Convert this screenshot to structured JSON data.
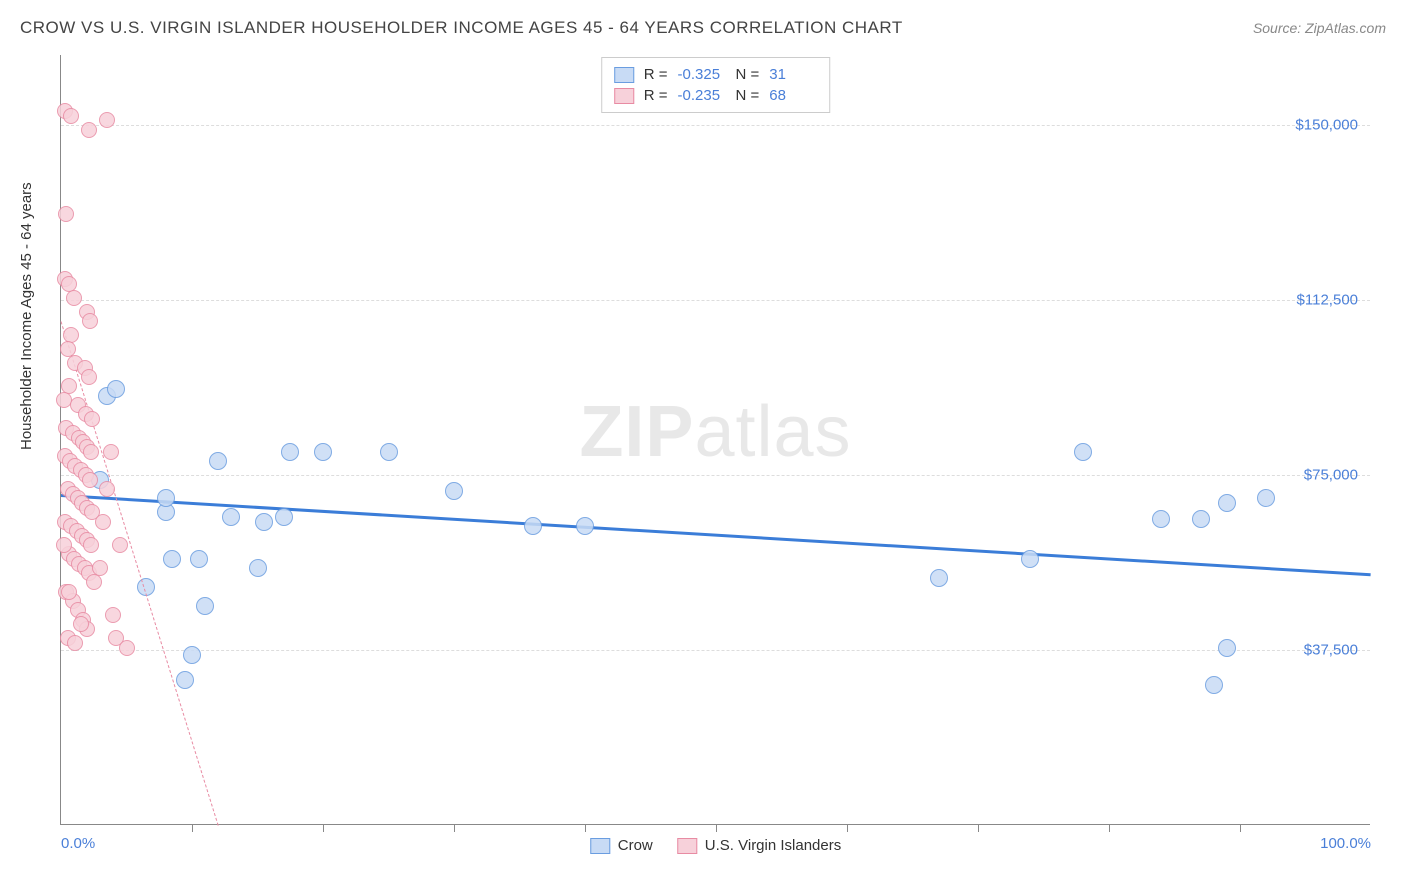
{
  "title": "CROW VS U.S. VIRGIN ISLANDER HOUSEHOLDER INCOME AGES 45 - 64 YEARS CORRELATION CHART",
  "source": "Source: ZipAtlas.com",
  "ylabel": "Householder Income Ages 45 - 64 years",
  "watermark_bold": "ZIP",
  "watermark_rest": "atlas",
  "chart": {
    "type": "scatter",
    "xlim": [
      0,
      100
    ],
    "ylim": [
      0,
      165000
    ],
    "x_tick_labels": [
      {
        "pos": 0,
        "label": "0.0%"
      },
      {
        "pos": 100,
        "label": "100.0%"
      }
    ],
    "x_minor_ticks": [
      10,
      20,
      30,
      40,
      50,
      60,
      70,
      80,
      90
    ],
    "y_gridlines": [
      {
        "val": 37500,
        "label": "$37,500"
      },
      {
        "val": 75000,
        "label": "$75,000"
      },
      {
        "val": 112500,
        "label": "$112,500"
      },
      {
        "val": 150000,
        "label": "$150,000"
      }
    ],
    "background_color": "#ffffff",
    "grid_color": "#dddddd",
    "axis_color": "#888888",
    "series": [
      {
        "name": "Crow",
        "fill": "#c8dbf5",
        "stroke": "#6a9de0",
        "marker_radius": 9,
        "stroke_width": 1.5,
        "trend": {
          "x1": 0,
          "y1": 71000,
          "x2": 100,
          "y2": 54000,
          "color": "#3b7dd8",
          "width": 3,
          "dash": false
        },
        "stats": {
          "R": "-0.325",
          "N": "31"
        },
        "points": [
          [
            8.0,
            67000
          ],
          [
            9.5,
            31000
          ],
          [
            10,
            36500
          ],
          [
            6.5,
            51000
          ],
          [
            11,
            47000
          ],
          [
            8.5,
            57000
          ],
          [
            10.5,
            57000
          ],
          [
            8,
            70000
          ],
          [
            13,
            66000
          ],
          [
            15,
            55000
          ],
          [
            15.5,
            65000
          ],
          [
            17,
            66000
          ],
          [
            12,
            78000
          ],
          [
            17.5,
            80000
          ],
          [
            20,
            80000
          ],
          [
            25,
            80000
          ],
          [
            30,
            71500
          ],
          [
            36,
            64000
          ],
          [
            40,
            64000
          ],
          [
            67,
            53000
          ],
          [
            74,
            57000
          ],
          [
            78,
            80000
          ],
          [
            84,
            65500
          ],
          [
            87,
            65500
          ],
          [
            88,
            30000
          ],
          [
            89,
            38000
          ],
          [
            89,
            69000
          ],
          [
            92,
            70000
          ],
          [
            3.5,
            92000
          ],
          [
            4.2,
            93500
          ],
          [
            3,
            74000
          ]
        ]
      },
      {
        "name": "U.S. Virgin Islanders",
        "fill": "#f7d1da",
        "stroke": "#e88ba3",
        "marker_radius": 8,
        "stroke_width": 1.5,
        "trend": {
          "x1": 0,
          "y1": 108000,
          "x2": 12,
          "y2": 0,
          "color": "#e88ba3",
          "width": 1.2,
          "dash": true
        },
        "stats": {
          "R": "-0.235",
          "N": "68"
        },
        "points": [
          [
            0.3,
            153000
          ],
          [
            0.8,
            152000
          ],
          [
            2.1,
            149000
          ],
          [
            3.5,
            151000
          ],
          [
            0.4,
            131000
          ],
          [
            0.3,
            117000
          ],
          [
            0.6,
            116000
          ],
          [
            1.0,
            113000
          ],
          [
            2.0,
            110000
          ],
          [
            2.2,
            108000
          ],
          [
            0.8,
            105000
          ],
          [
            0.5,
            102000
          ],
          [
            1.1,
            99000
          ],
          [
            1.8,
            98000
          ],
          [
            2.1,
            96000
          ],
          [
            0.6,
            94000
          ],
          [
            0.2,
            91000
          ],
          [
            1.3,
            90000
          ],
          [
            1.9,
            88000
          ],
          [
            2.4,
            87000
          ],
          [
            0.4,
            85000
          ],
          [
            0.9,
            84000
          ],
          [
            1.4,
            83000
          ],
          [
            1.7,
            82000
          ],
          [
            2.0,
            81000
          ],
          [
            2.3,
            80000
          ],
          [
            0.3,
            79000
          ],
          [
            0.7,
            78000
          ],
          [
            1.1,
            77000
          ],
          [
            1.5,
            76000
          ],
          [
            1.9,
            75000
          ],
          [
            2.2,
            74000
          ],
          [
            0.5,
            72000
          ],
          [
            0.9,
            71000
          ],
          [
            1.3,
            70000
          ],
          [
            1.6,
            69000
          ],
          [
            2.0,
            68000
          ],
          [
            2.4,
            67000
          ],
          [
            0.3,
            65000
          ],
          [
            0.8,
            64000
          ],
          [
            1.2,
            63000
          ],
          [
            1.6,
            62000
          ],
          [
            2.0,
            61000
          ],
          [
            2.3,
            60000
          ],
          [
            0.6,
            58000
          ],
          [
            1.0,
            57000
          ],
          [
            1.4,
            56000
          ],
          [
            1.8,
            55000
          ],
          [
            2.1,
            54000
          ],
          [
            2.5,
            52000
          ],
          [
            0.4,
            50000
          ],
          [
            0.9,
            48000
          ],
          [
            1.3,
            46000
          ],
          [
            1.7,
            44000
          ],
          [
            2.0,
            42000
          ],
          [
            0.5,
            40000
          ],
          [
            1.1,
            39000
          ],
          [
            1.5,
            43000
          ],
          [
            3.0,
            55000
          ],
          [
            3.2,
            65000
          ],
          [
            3.5,
            72000
          ],
          [
            4.0,
            45000
          ],
          [
            4.2,
            40000
          ],
          [
            5.0,
            38000
          ],
          [
            3.8,
            80000
          ],
          [
            0.2,
            60000
          ],
          [
            0.6,
            50000
          ],
          [
            4.5,
            60000
          ]
        ]
      }
    ]
  },
  "stats_legend": {
    "rows": [
      {
        "swatch_fill": "#c8dbf5",
        "swatch_stroke": "#6a9de0",
        "R": "-0.325",
        "N": "31"
      },
      {
        "swatch_fill": "#f7d1da",
        "swatch_stroke": "#e88ba3",
        "R": "-0.235",
        "N": "68"
      }
    ],
    "R_label": "R =",
    "N_label": "N ="
  },
  "bottom_legend": [
    {
      "swatch_fill": "#c8dbf5",
      "swatch_stroke": "#6a9de0",
      "label": "Crow"
    },
    {
      "swatch_fill": "#f7d1da",
      "swatch_stroke": "#e88ba3",
      "label": "U.S. Virgin Islanders"
    }
  ]
}
